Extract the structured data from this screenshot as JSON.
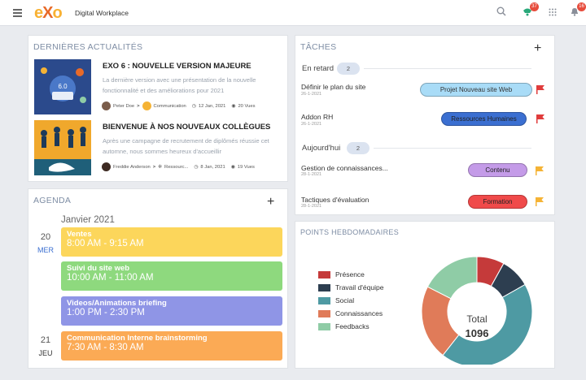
{
  "topbar": {
    "brand": "Digital Workplace",
    "notif_count": "37",
    "alert_count": "16"
  },
  "news": {
    "title": "Dernières actualités",
    "items": [
      {
        "headline": "EXO 6 : NOUVELLE VERSION MAJEURE",
        "summary": "La dernière version avec une présentation de la nouvelle fonctionnalité et des améliorations pour 2021",
        "author": "Peter Doe",
        "space": "Communication",
        "date": "12 Jan, 2021",
        "views": "20 Vues"
      },
      {
        "headline": "BIENVENUE À NOS NOUVEAUX COLLÈGUES",
        "summary": "Après une campagne de recrutement de diplômés réussie cet automne, nous sommes heureux d'accueillir",
        "author": "Freddie Anderson",
        "space": "Ressourc...",
        "date": "8 Jan, 2021",
        "views": "19 Vues"
      }
    ]
  },
  "tasks": {
    "title": "Tâches",
    "late_label": "En retard",
    "late_count": "2",
    "today_label": "Aujourd'hui",
    "today_count": "2",
    "items": [
      {
        "name": "Définir le plan du site",
        "date": "26-1-2021",
        "tag": "Projet Nouveau site Web",
        "tag_bg": "#a9dcf7",
        "tag_fg": "#333",
        "flag": "#e03c3c"
      },
      {
        "name": "Addon RH",
        "date": "26-1-2021",
        "tag": "Ressources Humaines",
        "tag_bg": "#3b6fd1",
        "tag_fg": "#222",
        "flag": "#e03c3c"
      },
      {
        "name": "Gestion de connaissances...",
        "date": "28-1-2021",
        "tag": "Contenu",
        "tag_bg": "#c49be8",
        "tag_fg": "#222",
        "flag": "#f5b335"
      },
      {
        "name": "Tactiques d'évaluation",
        "date": "28-1-2021",
        "tag": "Formation",
        "tag_bg": "#f04a4a",
        "tag_fg": "#222",
        "flag": "#f5b335"
      }
    ]
  },
  "agenda": {
    "title": "Agenda",
    "month": "Janvier 2021",
    "days": [
      {
        "num": "20",
        "name": "MER"
      },
      {
        "num": "21",
        "name": "JEU"
      }
    ],
    "events": [
      {
        "title": "Ventes",
        "time": "8:00 AM - 9:15 AM",
        "color": "#fcd65b"
      },
      {
        "title": "Suivi du site web",
        "time": "10:00 AM - 11:00 AM",
        "color": "#8ed97e"
      },
      {
        "title": "Videos/Animations briefing",
        "time": "1:00 PM - 2:30 PM",
        "color": "#8f95e6"
      },
      {
        "title": "Communication Interne brainstorming",
        "time": "7:30 AM - 8:30 AM",
        "color": "#fbaa55"
      }
    ]
  },
  "points": {
    "title": "Points hebdomadaires",
    "total_label": "Total",
    "total_value": "1096"
  },
  "chart_data": {
    "type": "pie",
    "title": "Points hebdomadaires",
    "categories": [
      "Présence",
      "Travail d'équipe",
      "Social",
      "Connaissances",
      "Feedbacks"
    ],
    "values": [
      88,
      96,
      480,
      240,
      192
    ],
    "colors": [
      "#c53a3a",
      "#2d3e50",
      "#4e9aa3",
      "#e07b59",
      "#8fcca6"
    ],
    "total": 1096,
    "legend": "left"
  }
}
